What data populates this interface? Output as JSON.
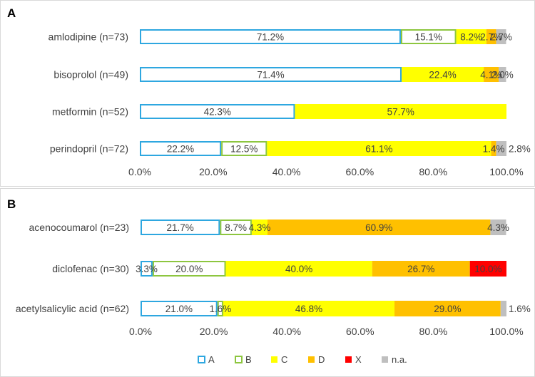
{
  "colors": {
    "A": "#2ea7e0",
    "B": "#8dc63f",
    "C": "#ffff00",
    "D": "#ffc000",
    "X": "#ff0000",
    "na": "#bfbfbf"
  },
  "legend": [
    {
      "key": "A",
      "label": "A",
      "style": "outline"
    },
    {
      "key": "B",
      "label": "B",
      "style": "outline"
    },
    {
      "key": "C",
      "label": "C",
      "style": "fill"
    },
    {
      "key": "D",
      "label": "D",
      "style": "fill"
    },
    {
      "key": "X",
      "label": "X",
      "style": "fill"
    },
    {
      "key": "na",
      "label": "n.a.",
      "style": "fill"
    }
  ],
  "chart_data": [
    {
      "panel": "A",
      "type": "bar",
      "orientation": "horizontal",
      "stacked": true,
      "xlim": [
        0,
        100
      ],
      "ticks": [
        "0.0%",
        "20.0%",
        "40.0%",
        "60.0%",
        "80.0%",
        "100.0%"
      ],
      "categories": [
        "amlodipine (n=73)",
        "bisoprolol (n=49)",
        "metformin (n=52)",
        "perindopril (n=72)"
      ],
      "series": [
        {
          "name": "A",
          "values": [
            71.2,
            71.4,
            42.3,
            22.2
          ],
          "labels": [
            "71.2%",
            "71.4%",
            "42.3%",
            "22.2%"
          ]
        },
        {
          "name": "B",
          "values": [
            15.1,
            0,
            0,
            12.5
          ],
          "labels": [
            "15.1%",
            "",
            "",
            "12.5%"
          ]
        },
        {
          "name": "C",
          "values": [
            8.2,
            22.4,
            57.7,
            61.1
          ],
          "labels": [
            "8.2%",
            "22.4%",
            "57.7%",
            "61.1%"
          ]
        },
        {
          "name": "D",
          "values": [
            2.7,
            4.1,
            0,
            1.4
          ],
          "labels": [
            "2.7%",
            "4.1%",
            "",
            "1.4%"
          ]
        },
        {
          "name": "X",
          "values": [
            0,
            0,
            0,
            0
          ],
          "labels": [
            "",
            "",
            "",
            ""
          ]
        },
        {
          "name": "n.a.",
          "values": [
            2.7,
            2.0,
            0,
            2.8
          ],
          "labels": [
            "2.7%",
            "2.0%",
            "",
            "2.8%"
          ]
        }
      ]
    },
    {
      "panel": "B",
      "type": "bar",
      "orientation": "horizontal",
      "stacked": true,
      "xlim": [
        0,
        100
      ],
      "ticks": [
        "0.0%",
        "20.0%",
        "40.0%",
        "60.0%",
        "80.0%",
        "100.0%"
      ],
      "categories": [
        "acenocoumarol (n=23)",
        "diclofenac (n=30)",
        "acetylsalicylic acid  (n=62)"
      ],
      "series": [
        {
          "name": "A",
          "values": [
            21.7,
            3.3,
            21.0
          ],
          "labels": [
            "21.7%",
            "3.3%",
            "21.0%"
          ]
        },
        {
          "name": "B",
          "values": [
            8.7,
            20.0,
            1.6
          ],
          "labels": [
            "8.7%",
            "20.0%",
            "1.6%"
          ]
        },
        {
          "name": "C",
          "values": [
            4.3,
            40.0,
            46.8
          ],
          "labels": [
            "4.3%",
            "40.0%",
            "46.8%"
          ]
        },
        {
          "name": "D",
          "values": [
            60.9,
            26.7,
            29.0
          ],
          "labels": [
            "60.9%",
            "26.7%",
            "29.0%"
          ]
        },
        {
          "name": "X",
          "values": [
            0,
            10.0,
            0
          ],
          "labels": [
            "",
            "10.0%",
            ""
          ]
        },
        {
          "name": "n.a.",
          "values": [
            4.3,
            0,
            1.6
          ],
          "labels": [
            "4.3%",
            "",
            "1.6%"
          ]
        }
      ]
    }
  ]
}
